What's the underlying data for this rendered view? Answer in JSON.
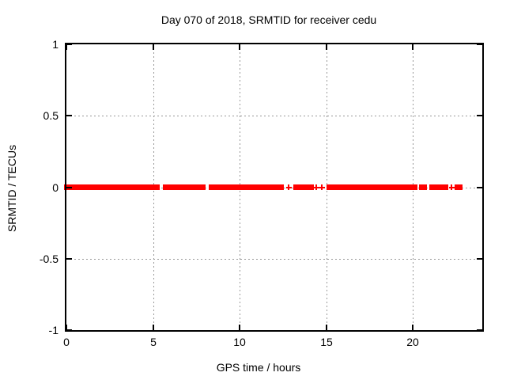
{
  "colors": {
    "background": "#ffffff",
    "axis": "#000000",
    "grid": "#999999",
    "data": "#ff0000",
    "text": "#000000"
  },
  "chart_data": {
    "type": "scatter",
    "title": "Day 070 of 2018, SRMTID for receiver cedu",
    "xlabel": "GPS time / hours",
    "ylabel": "SRMTID / TECUs",
    "xlim": [
      0,
      24
    ],
    "ylim": [
      -1,
      1
    ],
    "xticks": [
      0,
      5,
      10,
      15,
      20
    ],
    "xtick_labels": [
      "0",
      "5",
      "10",
      "15",
      "20"
    ],
    "yticks": [
      1,
      0.5,
      0,
      -0.5,
      -1
    ],
    "ytick_labels": [
      "1",
      "0.5",
      "0",
      "-0.5",
      "-1"
    ],
    "grid": true,
    "marker": "plus",
    "marker_color": "#ff0000",
    "series_value": 0,
    "dense_segments_hours": [
      [
        0.0,
        5.38
      ],
      [
        5.57,
        8.03
      ],
      [
        8.23,
        12.55
      ],
      [
        13.09,
        14.27
      ],
      [
        15.03,
        20.24
      ],
      [
        20.36,
        20.8
      ],
      [
        20.93,
        22.02
      ],
      [
        22.4,
        22.86
      ]
    ],
    "isolated_points_hours": [
      12.82,
      14.42,
      14.74,
      22.24
    ]
  }
}
